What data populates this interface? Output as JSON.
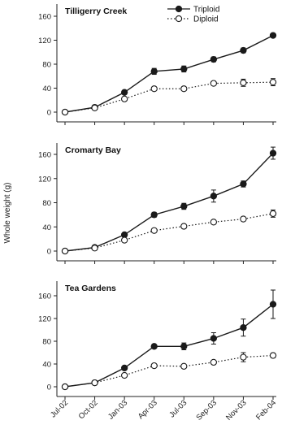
{
  "chart_data": {
    "type": "line",
    "ylabel": "Whole weight (g)",
    "x": [
      "Jul-02",
      "Oct-02",
      "Jan-03",
      "Apr-03",
      "Jul-03",
      "Sep-03",
      "Nov-03",
      "Feb-04"
    ],
    "ylim": [
      0,
      160
    ],
    "yticks": [
      0,
      40,
      80,
      120,
      160
    ],
    "legend": {
      "position": "top-right",
      "entries": [
        "Triploid",
        "Diploid"
      ]
    },
    "series_styles": {
      "Triploid": {
        "marker": "filled-circle",
        "line": "solid",
        "color": "#1a1a1a"
      },
      "Diploid": {
        "marker": "open-circle",
        "line": "dotted",
        "color": "#1a1a1a"
      }
    },
    "panels": [
      {
        "title": "Tilligerry Creek",
        "series": [
          {
            "name": "Triploid",
            "values": [
              0,
              8,
              33,
              68,
              72,
              88,
              103,
              128
            ],
            "errors": [
              0,
              1,
              3,
              5,
              5,
              4,
              4,
              3
            ]
          },
          {
            "name": "Diploid",
            "values": [
              0,
              7,
              22,
              39,
              39,
              48,
              49,
              50
            ],
            "errors": [
              0,
              1,
              2,
              2,
              2,
              3,
              6,
              6
            ]
          }
        ]
      },
      {
        "title": "Cromarty Bay",
        "series": [
          {
            "name": "Triploid",
            "values": [
              0,
              6,
              27,
              60,
              74,
              91,
              111,
              162
            ],
            "errors": [
              0,
              1,
              3,
              4,
              5,
              10,
              5,
              10
            ]
          },
          {
            "name": "Diploid",
            "values": [
              0,
              5,
              18,
              34,
              41,
              48,
              53,
              62
            ],
            "errors": [
              0,
              1,
              2,
              2,
              3,
              3,
              3,
              6
            ]
          }
        ]
      },
      {
        "title": "Tea Gardens",
        "series": [
          {
            "name": "Triploid",
            "values": [
              0,
              7,
              33,
              71,
              71,
              85,
              104,
              145
            ],
            "errors": [
              0,
              1,
              3,
              3,
              6,
              10,
              15,
              25
            ]
          },
          {
            "name": "Diploid",
            "values": [
              0,
              7,
              20,
              37,
              36,
              43,
              52,
              55
            ],
            "errors": [
              0,
              1,
              2,
              2,
              2,
              3,
              8,
              4
            ]
          }
        ]
      }
    ]
  }
}
